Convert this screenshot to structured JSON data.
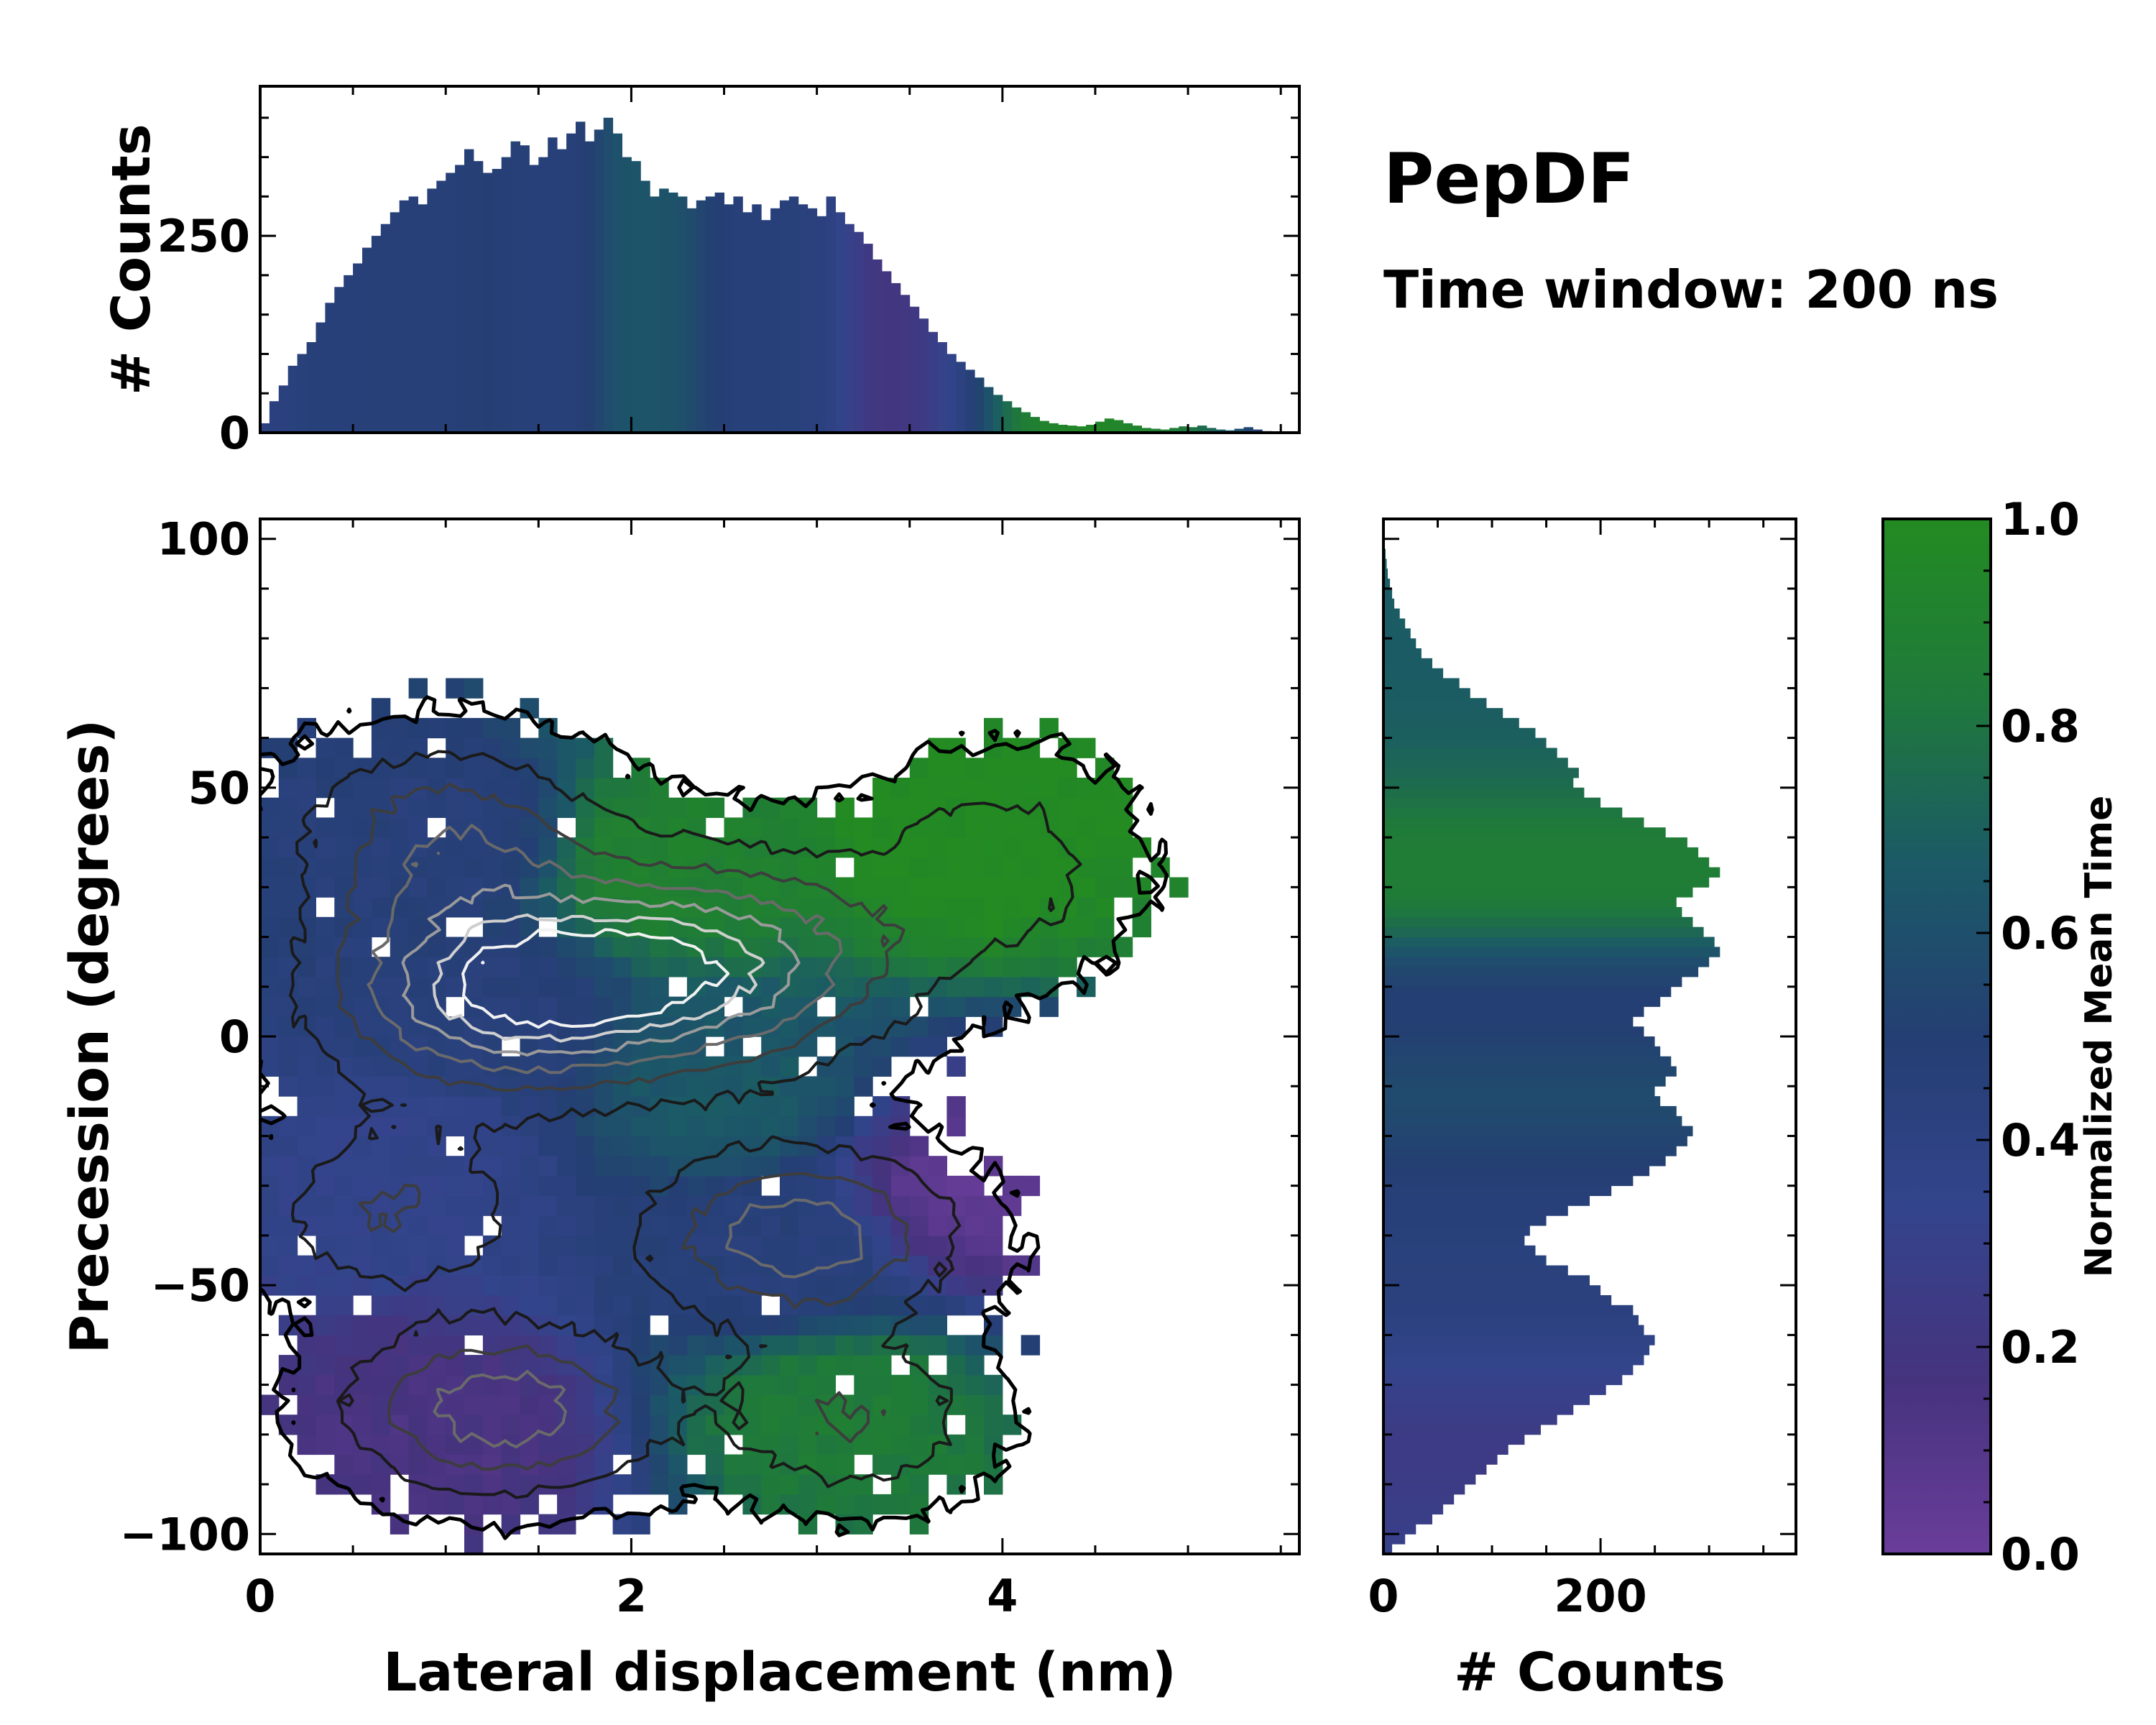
{
  "chart_data": {
    "type": "heatmap",
    "title": "PepDF",
    "subtitle": "Time window: 200 ns",
    "main": {
      "xlabel": "Lateral displacement (nm)",
      "ylabel": "Precession (degrees)",
      "xlim": [
        0,
        5.6
      ],
      "ylim": [
        -104,
        104
      ],
      "xticks": [
        "0",
        "2",
        "4"
      ],
      "xtick_values": [
        0,
        2,
        4
      ],
      "yticks": [
        "100",
        "50",
        "0",
        "−50",
        "−100"
      ],
      "ytick_values": [
        100,
        50,
        0,
        -50,
        -100
      ],
      "clusters": [
        {
          "x": 1.0,
          "y": 40,
          "sx": 0.6,
          "sy": 14,
          "w": 0.6
        },
        {
          "x": 1.3,
          "y": 8,
          "sx": 0.7,
          "sy": 14,
          "w": 1.0
        },
        {
          "x": 2.5,
          "y": 15,
          "sx": 0.7,
          "sy": 15,
          "w": 0.9
        },
        {
          "x": 2.9,
          "y": -40,
          "sx": 0.6,
          "sy": 12,
          "w": 0.8
        },
        {
          "x": 1.3,
          "y": -75,
          "sx": 0.6,
          "sy": 12,
          "w": 0.8
        },
        {
          "x": 3.2,
          "y": -77,
          "sx": 0.5,
          "sy": 12,
          "w": 0.5
        },
        {
          "x": 4.0,
          "y": 35,
          "sx": 0.5,
          "sy": 15,
          "w": 0.4
        },
        {
          "x": 0.7,
          "y": -35,
          "sx": 0.5,
          "sy": 12,
          "w": 0.5
        }
      ],
      "time_regions": [
        {
          "x": 3.8,
          "y": 40,
          "t": 1.0
        },
        {
          "x": 3.1,
          "y": -75,
          "t": 0.85
        },
        {
          "x": 2.2,
          "y": 35,
          "t": 0.9
        },
        {
          "x": 2.5,
          "y": -10,
          "t": 0.65
        },
        {
          "x": 1.0,
          "y": 40,
          "t": 0.45
        },
        {
          "x": 1.2,
          "y": 5,
          "t": 0.45
        },
        {
          "x": 0.8,
          "y": -25,
          "t": 0.35
        },
        {
          "x": 1.0,
          "y": -80,
          "t": 0.15
        },
        {
          "x": 3.9,
          "y": -30,
          "t": 0.05
        },
        {
          "x": 2.8,
          "y": -45,
          "t": 0.45
        }
      ]
    },
    "top_histogram": {
      "ylabel": "# Counts",
      "ylim": [
        0,
        440
      ],
      "yticks": [
        "0",
        "250"
      ],
      "ytick_values": [
        0,
        250
      ],
      "x_start": 0,
      "bin_width": 0.05,
      "values": [
        12,
        40,
        60,
        85,
        100,
        115,
        140,
        165,
        185,
        200,
        215,
        235,
        250,
        265,
        280,
        295,
        300,
        290,
        310,
        320,
        330,
        340,
        360,
        345,
        330,
        335,
        350,
        370,
        365,
        340,
        350,
        375,
        360,
        380,
        395,
        370,
        385,
        400,
        380,
        350,
        345,
        320,
        300,
        310,
        305,
        300,
        285,
        295,
        300,
        305,
        290,
        300,
        280,
        290,
        270,
        285,
        295,
        300,
        290,
        285,
        275,
        300,
        280,
        265,
        255,
        240,
        220,
        205,
        190,
        175,
        160,
        145,
        128,
        115,
        100,
        90,
        80,
        70,
        58,
        48,
        40,
        32,
        26,
        20,
        15,
        12,
        10,
        9,
        8,
        10,
        14,
        18,
        16,
        12,
        9,
        6,
        5,
        4,
        6,
        8,
        7,
        9,
        6,
        4,
        3,
        5,
        7,
        4,
        2,
        0,
        0,
        0
      ]
    },
    "right_histogram": {
      "xlabel": "# Counts",
      "xlim": [
        0,
        380
      ],
      "xticks": [
        "0",
        "200"
      ],
      "xtick_values": [
        0,
        200
      ],
      "y_start": -104,
      "bin_width": 2,
      "values": [
        8,
        20,
        30,
        45,
        55,
        65,
        75,
        85,
        95,
        105,
        115,
        130,
        145,
        160,
        175,
        190,
        205,
        220,
        230,
        240,
        245,
        250,
        240,
        235,
        230,
        210,
        200,
        190,
        170,
        150,
        140,
        130,
        135,
        150,
        170,
        190,
        210,
        230,
        245,
        260,
        270,
        280,
        285,
        275,
        270,
        255,
        250,
        260,
        270,
        265,
        255,
        250,
        240,
        230,
        240,
        255,
        265,
        275,
        290,
        300,
        310,
        305,
        295,
        285,
        275,
        270,
        285,
        300,
        310,
        300,
        290,
        280,
        260,
        240,
        220,
        200,
        185,
        175,
        180,
        170,
        160,
        150,
        140,
        125,
        110,
        95,
        80,
        70,
        55,
        45,
        35,
        30,
        25,
        20,
        15,
        10,
        8,
        6,
        4,
        3,
        2,
        0,
        0,
        0
      ]
    },
    "colorbar": {
      "label": "Normalized Mean Time",
      "range": [
        0,
        1
      ],
      "ticks": [
        "0.0",
        "0.2",
        "0.4",
        "0.6",
        "0.8",
        "1.0"
      ],
      "tick_values": [
        0,
        0.2,
        0.4,
        0.6,
        0.8,
        1.0
      ],
      "colors": [
        "#6a3d9a",
        "#46337e",
        "#33448c",
        "#243f73",
        "#1b5a66",
        "#1f7a3a",
        "#238b22"
      ]
    }
  }
}
